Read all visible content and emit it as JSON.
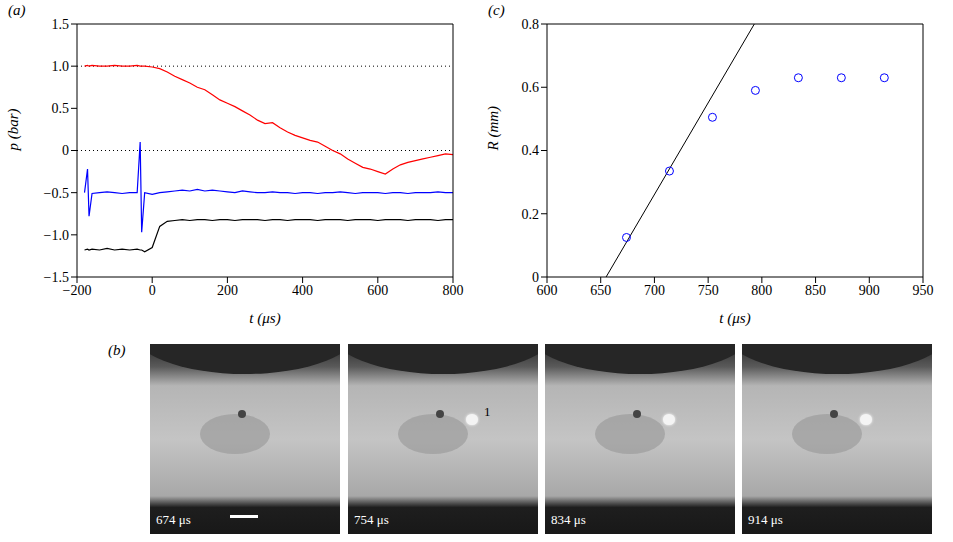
{
  "chart_data": [
    {
      "type": "line",
      "title": "(a)",
      "x_label": "t (μs)",
      "y_label": "p (bar)",
      "x": [
        -180,
        -172,
        -168,
        -160,
        -140,
        -120,
        -100,
        -80,
        -60,
        -40,
        -32,
        -28,
        -20,
        0,
        20,
        40,
        60,
        80,
        100,
        120,
        140,
        160,
        180,
        200,
        220,
        240,
        260,
        280,
        300,
        320,
        340,
        360,
        380,
        400,
        420,
        440,
        460,
        480,
        500,
        520,
        540,
        560,
        580,
        600,
        620,
        640,
        660,
        680,
        700,
        720,
        740,
        760,
        780,
        800
      ],
      "series": [
        {
          "color": "#ff0000",
          "values": [
            1.0,
            1.01,
            1.0,
            1.01,
            1.0,
            1.0,
            1.01,
            1.0,
            1.0,
            1.01,
            1.0,
            1.0,
            1.0,
            0.99,
            0.97,
            0.93,
            0.88,
            0.84,
            0.8,
            0.75,
            0.72,
            0.66,
            0.6,
            0.56,
            0.52,
            0.47,
            0.42,
            0.36,
            0.32,
            0.33,
            0.27,
            0.22,
            0.18,
            0.15,
            0.12,
            0.1,
            0.05,
            0.0,
            -0.04,
            -0.1,
            -0.15,
            -0.2,
            -0.22,
            -0.25,
            -0.28,
            -0.22,
            -0.17,
            -0.14,
            -0.12,
            -0.1,
            -0.08,
            -0.06,
            -0.04,
            -0.05
          ]
        },
        {
          "color": "#0000ff",
          "values": [
            -0.5,
            -0.22,
            -0.78,
            -0.51,
            -0.5,
            -0.49,
            -0.5,
            -0.51,
            -0.5,
            -0.5,
            0.1,
            -0.97,
            -0.5,
            -0.52,
            -0.5,
            -0.49,
            -0.48,
            -0.47,
            -0.48,
            -0.46,
            -0.48,
            -0.47,
            -0.48,
            -0.49,
            -0.5,
            -0.48,
            -0.49,
            -0.5,
            -0.5,
            -0.49,
            -0.5,
            -0.5,
            -0.51,
            -0.5,
            -0.5,
            -0.51,
            -0.5,
            -0.5,
            -0.49,
            -0.5,
            -0.51,
            -0.5,
            -0.5,
            -0.5,
            -0.51,
            -0.5,
            -0.5,
            -0.51,
            -0.5,
            -0.5,
            -0.5,
            -0.49,
            -0.5,
            -0.5
          ]
        },
        {
          "color": "#000000",
          "values": [
            -1.18,
            -1.17,
            -1.18,
            -1.17,
            -1.18,
            -1.16,
            -1.18,
            -1.17,
            -1.18,
            -1.17,
            -1.18,
            -1.18,
            -1.2,
            -1.15,
            -0.9,
            -0.84,
            -0.83,
            -0.82,
            -0.83,
            -0.82,
            -0.82,
            -0.83,
            -0.82,
            -0.82,
            -0.83,
            -0.82,
            -0.82,
            -0.82,
            -0.83,
            -0.82,
            -0.82,
            -0.83,
            -0.82,
            -0.82,
            -0.82,
            -0.83,
            -0.82,
            -0.82,
            -0.82,
            -0.83,
            -0.82,
            -0.82,
            -0.82,
            -0.83,
            -0.82,
            -0.82,
            -0.82,
            -0.83,
            -0.82,
            -0.82,
            -0.82,
            -0.83,
            -0.82,
            -0.82
          ]
        }
      ],
      "xlim": [
        -200,
        800
      ],
      "xticks": [
        {
          "value": -200,
          "label": "−200"
        },
        0,
        200,
        400,
        600,
        800
      ],
      "ylim": [
        -1.5,
        1.5
      ],
      "yticks": [
        {
          "value": -1.5,
          "label": "−1.5"
        },
        {
          "value": -1,
          "label": "−1.0"
        },
        {
          "value": -0.5,
          "label": "−0.5"
        },
        0,
        0.5,
        {
          "value": 1,
          "label": "1.0"
        },
        1.5
      ],
      "hlines": [
        1,
        0
      ]
    },
    {
      "type": "scatter",
      "title": "(c)",
      "x_label": "t (μs)",
      "y_label": "R (mm)",
      "series": [
        {
          "type": "scatter",
          "color": "#0000ff",
          "marker": "open_circle",
          "x": [
            674,
            714,
            754,
            794,
            834,
            874,
            914
          ],
          "values": [
            0.125,
            0.335,
            0.505,
            0.59,
            0.63,
            0.63,
            0.63
          ]
        },
        {
          "type": "line",
          "color": "#000000",
          "x": [
            655,
            793
          ],
          "values": [
            0,
            0.8
          ]
        }
      ],
      "xlim": [
        600,
        950
      ],
      "xticks": [
        600,
        650,
        700,
        750,
        800,
        850,
        900,
        950
      ],
      "ylim": [
        0,
        0.8
      ],
      "yticks": [
        0,
        0.2,
        0.4,
        0.6,
        0.8
      ]
    }
  ],
  "panel_b": {
    "label": "(b)",
    "frames": [
      {
        "label": "674 μs"
      },
      {
        "label": "754 μs",
        "annotation": "1"
      },
      {
        "label": "834 μs"
      },
      {
        "label": "914 μs"
      }
    ]
  }
}
